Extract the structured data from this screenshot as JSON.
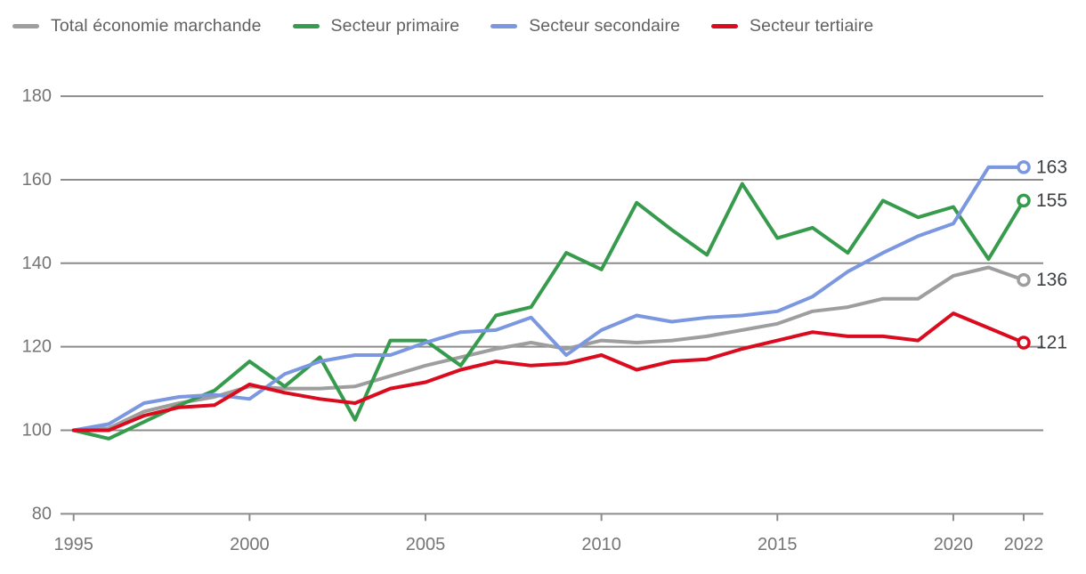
{
  "chart_data": {
    "type": "line",
    "title": "",
    "xlabel": "",
    "ylabel": "",
    "x": [
      1995,
      1996,
      1997,
      1998,
      1999,
      2000,
      2001,
      2002,
      2003,
      2004,
      2005,
      2006,
      2007,
      2008,
      2009,
      2010,
      2011,
      2012,
      2013,
      2014,
      2015,
      2016,
      2017,
      2018,
      2019,
      2020,
      2021,
      2022
    ],
    "xticks": [
      1995,
      2000,
      2005,
      2010,
      2015,
      2020,
      2022
    ],
    "yticks": [
      80,
      100,
      120,
      140,
      160,
      180
    ],
    "ylim": [
      80,
      180
    ],
    "grid": "horizontal",
    "legend_position": "top",
    "grid_color": "#8c8c8c",
    "axis_text_color": "#757575",
    "end_label_color": "#3c4043",
    "series": [
      {
        "name": "Total économie marchande",
        "color": "#9e9e9e",
        "end_label": "136",
        "values": [
          100,
          100.5,
          104.5,
          106.5,
          108,
          110.5,
          110,
          110,
          110.5,
          113,
          115.5,
          117.5,
          119.5,
          121,
          119.5,
          121.5,
          121,
          121.5,
          122.5,
          124,
          125.5,
          128.5,
          129.5,
          131.5,
          131.5,
          137,
          139,
          136
        ]
      },
      {
        "name": "Secteur primaire",
        "color": "#369b4c",
        "end_label": "155",
        "values": [
          100,
          98,
          102,
          106,
          109.5,
          116.5,
          110.5,
          117.5,
          102.5,
          121.5,
          121.5,
          115.5,
          127.5,
          129.5,
          142.5,
          138.5,
          154.5,
          148,
          142,
          159,
          146,
          148.5,
          142.5,
          155,
          151,
          153.5,
          141,
          155
        ]
      },
      {
        "name": "Secteur secondaire",
        "color": "#7b97e0",
        "end_label": "163",
        "values": [
          100,
          101.5,
          106.5,
          108,
          108.5,
          107.5,
          113.5,
          116.5,
          118,
          118,
          121,
          123.5,
          124,
          127,
          118,
          124,
          127.5,
          126,
          127,
          127.5,
          128.5,
          132,
          138,
          142.5,
          146.5,
          149.5,
          163,
          163
        ]
      },
      {
        "name": "Secteur tertiaire",
        "color": "#da0b1e",
        "end_label": "121",
        "values": [
          100,
          100,
          103.5,
          105.5,
          106,
          111,
          109,
          107.5,
          106.5,
          110,
          111.5,
          114.5,
          116.5,
          115.5,
          116,
          118,
          114.5,
          116.5,
          117,
          119.5,
          121.5,
          123.5,
          122.5,
          122.5,
          121.5,
          128,
          124.5,
          121
        ]
      }
    ]
  }
}
